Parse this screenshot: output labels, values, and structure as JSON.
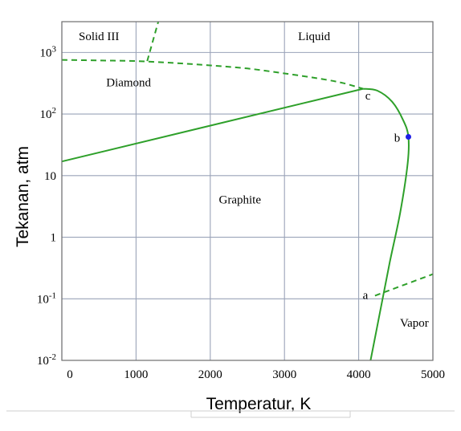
{
  "chart_data": {
    "type": "line",
    "xlabel": "Temperatur, K",
    "ylabel": "Tekanan, atm",
    "xlim": [
      0,
      5000
    ],
    "ylim_log10": [
      -2,
      3.5
    ],
    "y_scale": "log",
    "grid": true,
    "x_ticks": [
      {
        "value": 0,
        "label": "0"
      },
      {
        "value": 1000,
        "label": "1000"
      },
      {
        "value": 2000,
        "label": "2000"
      },
      {
        "value": 3000,
        "label": "3000"
      },
      {
        "value": 4000,
        "label": "4000"
      },
      {
        "value": 5000,
        "label": "5000"
      }
    ],
    "y_ticks": [
      {
        "log10": -2,
        "base": "10",
        "exp": "-2",
        "plain": ""
      },
      {
        "log10": -1,
        "base": "10",
        "exp": "-1",
        "plain": ""
      },
      {
        "log10": 0,
        "base": "",
        "exp": "",
        "plain": "1"
      },
      {
        "log10": 1,
        "base": "",
        "exp": "",
        "plain": "10"
      },
      {
        "log10": 2,
        "base": "10",
        "exp": "2",
        "plain": ""
      },
      {
        "log10": 3,
        "base": "10",
        "exp": "3",
        "plain": ""
      }
    ],
    "regions": [
      {
        "label": "Solid III",
        "x": 500,
        "y_log10": 3.2
      },
      {
        "label": "Liquid",
        "x": 3400,
        "y_log10": 3.2
      },
      {
        "label": "Diamond",
        "x": 900,
        "y_log10": 2.45
      },
      {
        "label": "Graphite",
        "x": 2400,
        "y_log10": 0.55
      },
      {
        "label": "Vapor",
        "x": 4750,
        "y_log10": -1.45
      }
    ],
    "points": [
      {
        "label": "a",
        "x": 4220,
        "y_log10": -0.95
      },
      {
        "label": "b",
        "x": 4670,
        "y_log10": 1.63
      },
      {
        "label": "c",
        "x": 4060,
        "y_log10": 2.42
      }
    ],
    "series": [
      {
        "style": "solid",
        "x": [
          0,
          4060
        ],
        "y_log10": [
          1.23,
          2.41
        ]
      },
      {
        "style": "solid",
        "x": [
          4060,
          4250,
          4450,
          4600,
          4670,
          4660,
          4560,
          4420,
          4290,
          4160
        ],
        "y_log10": [
          2.41,
          2.38,
          2.2,
          1.9,
          1.63,
          1.2,
          0.4,
          -0.4,
          -1.2,
          -2.0
        ]
      },
      {
        "style": "dashed",
        "x": [
          0,
          500,
          1000,
          1500,
          2000,
          2500,
          3000,
          3500,
          3800,
          4060
        ],
        "y_log10": [
          2.88,
          2.87,
          2.86,
          2.83,
          2.79,
          2.74,
          2.66,
          2.57,
          2.5,
          2.41
        ]
      },
      {
        "style": "dashed",
        "x": [
          1150,
          1300
        ],
        "y_log10": [
          2.86,
          3.5
        ]
      },
      {
        "style": "dashed",
        "x": [
          4220,
          5000
        ],
        "y_log10": [
          -0.95,
          -0.6
        ]
      }
    ],
    "line_color": "#2ea02a",
    "point_b_color": "#1f1fe6"
  }
}
